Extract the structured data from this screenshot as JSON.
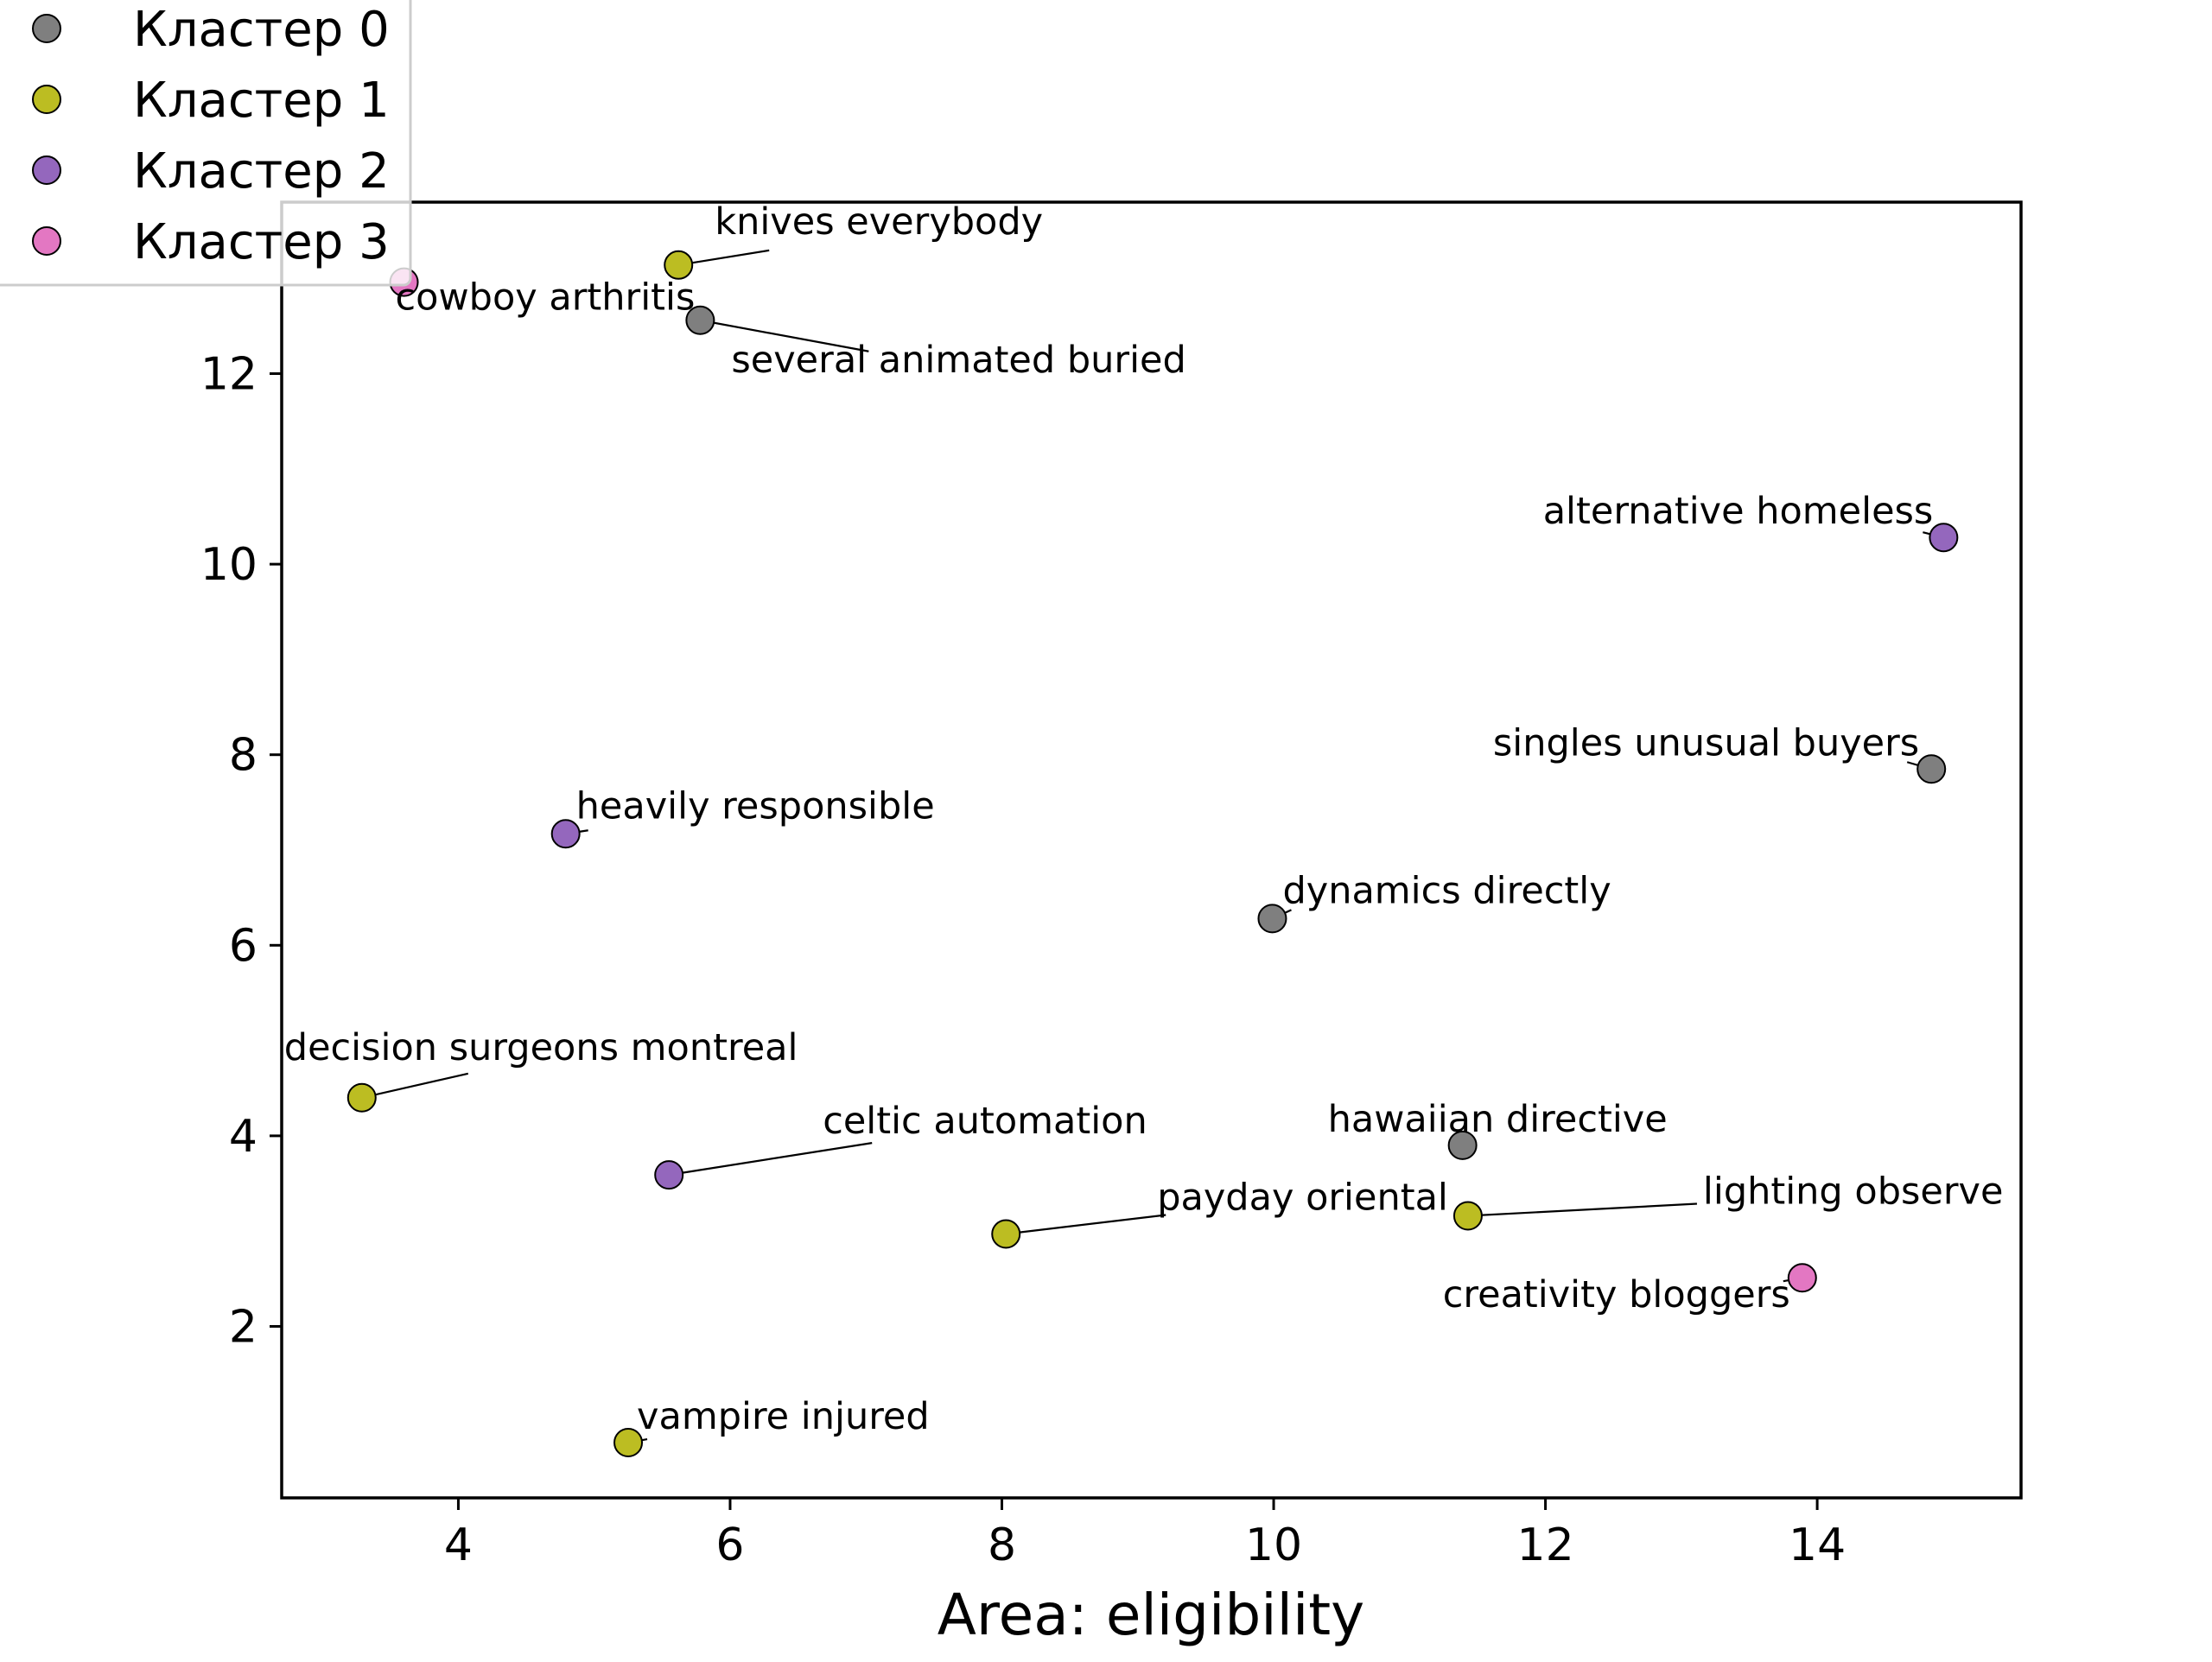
{
  "chart_data": {
    "type": "scatter",
    "title": "",
    "xlabel": "Area: eligibility",
    "ylabel": "",
    "xlim": [
      2.7,
      15.5
    ],
    "ylim": [
      0.2,
      13.8
    ],
    "xticks": [
      4,
      6,
      8,
      10,
      12,
      14
    ],
    "yticks": [
      2,
      4,
      6,
      8,
      10,
      12
    ],
    "grid": false,
    "legend_position": "top-left",
    "series": [
      {
        "name": "Кластер 0",
        "color": "#7f7f7f",
        "points": [
          {
            "label": "several animated buried",
            "x": 5.78,
            "y": 12.56
          },
          {
            "label": "singles unusual buyers",
            "x": 14.84,
            "y": 7.85
          },
          {
            "label": "dynamics directly",
            "x": 9.99,
            "y": 6.28
          },
          {
            "label": "hawaiian directive",
            "x": 11.39,
            "y": 3.9
          }
        ]
      },
      {
        "name": "Кластер 1",
        "color": "#bcbd22",
        "points": [
          {
            "label": "knives everybody",
            "x": 5.62,
            "y": 13.14
          },
          {
            "label": "decision surgeons montreal",
            "x": 3.29,
            "y": 4.4
          },
          {
            "label": "payday oriental",
            "x": 8.03,
            "y": 2.97
          },
          {
            "label": "lighting observe",
            "x": 11.43,
            "y": 3.16
          },
          {
            "label": "vampire injured",
            "x": 5.25,
            "y": 0.78
          }
        ]
      },
      {
        "name": "Кластер 2",
        "color": "#9467bd",
        "points": [
          {
            "label": "alternative homeless",
            "x": 14.93,
            "y": 10.28
          },
          {
            "label": "heavily responsible",
            "x": 4.79,
            "y": 7.17
          },
          {
            "label": "celtic automation",
            "x": 5.55,
            "y": 3.59
          }
        ]
      },
      {
        "name": "Кластер 3",
        "color": "#e377c2",
        "points": [
          {
            "label": "cowboy arthritis",
            "x": 3.6,
            "y": 12.96
          },
          {
            "label": "creativity bloggers",
            "x": 13.89,
            "y": 2.51
          }
        ]
      }
    ]
  }
}
